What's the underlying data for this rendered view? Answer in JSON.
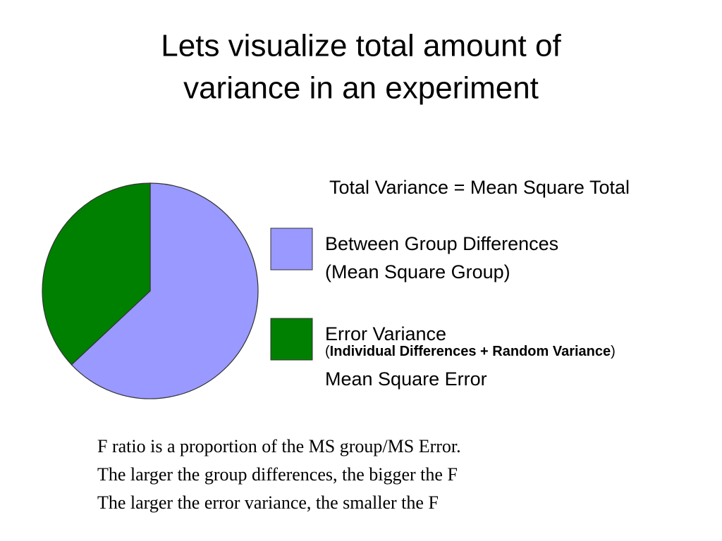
{
  "chart_data": {
    "type": "pie",
    "title": [
      "Lets visualize total amount of",
      "variance in an experiment"
    ],
    "subtitle": "Total Variance = Mean Square Total",
    "categories": [
      "Between Group Differences",
      "Error Variance"
    ],
    "values": [
      63,
      37
    ],
    "colors": [
      "#9999ff",
      "#008000"
    ],
    "legend_details": [
      [
        [
          {
            "text": "(Mean Square Group)"
          }
        ]
      ],
      [
        [
          {
            "text": "("
          },
          {
            "text": "Individual Differences + Random Variance",
            "bold": true
          },
          {
            "text": ")"
          }
        ],
        [
          {
            "text": "Mean Square Error"
          }
        ]
      ]
    ],
    "notes": [
      "F ratio is a proportion of the MS group/MS Error.",
      "The larger the group differences, the bigger the F",
      "The larger the error variance, the smaller the F"
    ]
  }
}
